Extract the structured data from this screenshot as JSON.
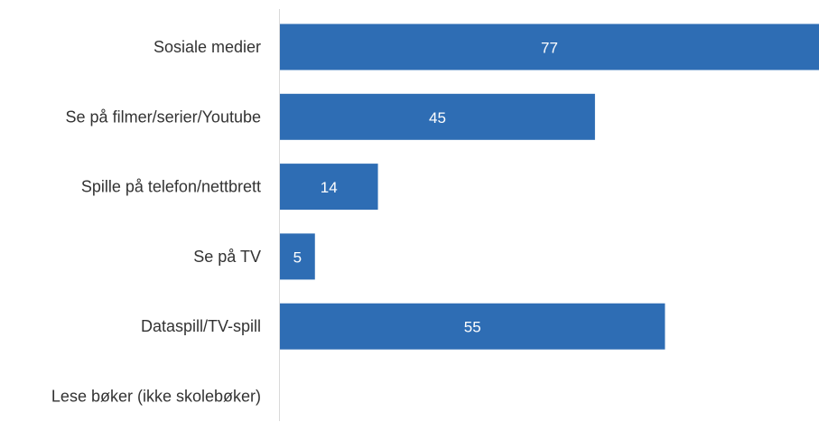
{
  "chart_data": {
    "type": "bar",
    "orientation": "horizontal",
    "categories": [
      "Sosiale medier",
      "Se på filmer/serier/Youtube",
      "Spille på telefon/nettbrett",
      "Se på TV",
      "Dataspill/TV-spill",
      "Lese bøker (ikke skolebøker)"
    ],
    "values": [
      77,
      45,
      14,
      5,
      55,
      0
    ],
    "data_labels": [
      "77",
      "45",
      "14",
      "5",
      "55",
      ""
    ],
    "xlim": [
      0,
      77
    ],
    "grid": false,
    "legend": "none",
    "colors": {
      "bar": "#2e6db4",
      "axis": "#d9d9d9",
      "category_text": "#333333",
      "value_text": "#ffffff"
    }
  }
}
